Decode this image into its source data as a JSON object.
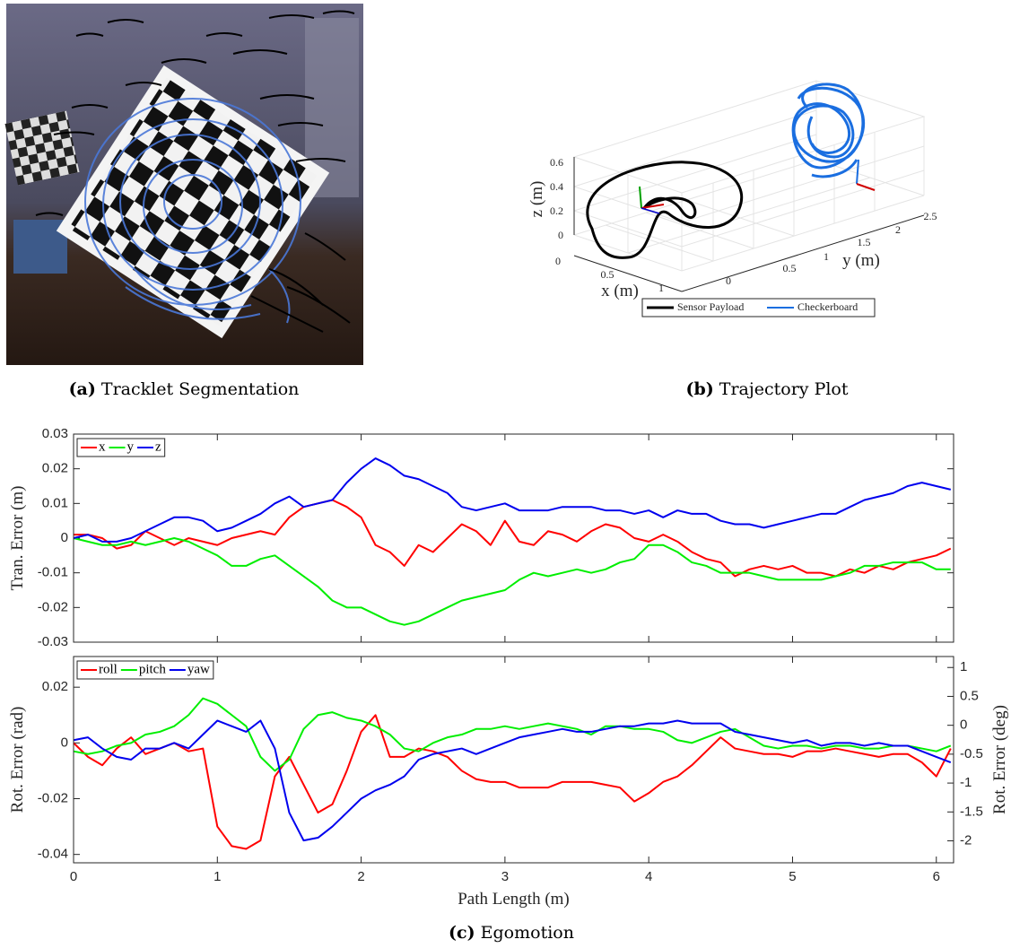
{
  "figure_a": {
    "label": "(a)",
    "caption": "Tracklet Segmentation"
  },
  "figure_b": {
    "label": "(b)",
    "caption": "Trajectory Plot",
    "zlabel": "z (m)",
    "xlabel": "x (m)",
    "ylabel": "y (m)",
    "zticks": [
      "0",
      "0.2",
      "0.4",
      "0.6"
    ],
    "xticks": [
      "0",
      "0.5",
      "1"
    ],
    "yticks": [
      "0",
      "0.5",
      "1",
      "1.5",
      "2",
      "2.5"
    ],
    "legend": [
      "Sensor Payload",
      "Checkerboard"
    ]
  },
  "figure_c": {
    "label": "(c)",
    "caption": "Egomotion"
  },
  "chart_data": [
    {
      "type": "line",
      "ylabel": "Tran. Error (m)",
      "xlim": [
        0,
        6.12
      ],
      "ylim": [
        -0.03,
        0.03
      ],
      "xticks": [
        0,
        1,
        2,
        3,
        4,
        5,
        6
      ],
      "show_xtick_labels": false,
      "yticks": [
        -0.03,
        -0.02,
        -0.01,
        0,
        0.01,
        0.02,
        0.03
      ],
      "legend": "upper left",
      "x": [
        0,
        0.1,
        0.2,
        0.3,
        0.4,
        0.5,
        0.6,
        0.7,
        0.8,
        0.9,
        1,
        1.1,
        1.2,
        1.3,
        1.4,
        1.5,
        1.6,
        1.7,
        1.8,
        1.9,
        2,
        2.1,
        2.2,
        2.3,
        2.4,
        2.5,
        2.6,
        2.7,
        2.8,
        2.9,
        3,
        3.1,
        3.2,
        3.3,
        3.4,
        3.5,
        3.6,
        3.7,
        3.8,
        3.9,
        4,
        4.1,
        4.2,
        4.3,
        4.4,
        4.5,
        4.6,
        4.7,
        4.8,
        4.9,
        5,
        5.1,
        5.2,
        5.3,
        5.4,
        5.5,
        5.6,
        5.7,
        5.8,
        5.9,
        6,
        6.1
      ],
      "series": [
        {
          "name": "x",
          "color": "#ff0000",
          "values": [
            0.001,
            0.001,
            0,
            -0.003,
            -0.002,
            0.002,
            0,
            -0.002,
            0,
            -0.001,
            -0.002,
            0,
            0.001,
            0.002,
            0.001,
            0.006,
            0.009,
            0.01,
            0.011,
            0.009,
            0.006,
            -0.002,
            -0.004,
            -0.008,
            -0.002,
            -0.004,
            0,
            0.004,
            0.002,
            -0.002,
            0.005,
            -0.001,
            -0.002,
            0.002,
            0.001,
            -0.001,
            0.002,
            0.004,
            0.003,
            0,
            -0.001,
            0.001,
            -0.001,
            -0.004,
            -0.006,
            -0.007,
            -0.011,
            -0.009,
            -0.008,
            -0.009,
            -0.008,
            -0.01,
            -0.01,
            -0.011,
            -0.009,
            -0.01,
            -0.008,
            -0.009,
            -0.007,
            -0.006,
            -0.005,
            -0.003
          ]
        },
        {
          "name": "y",
          "color": "#00ee00",
          "values": [
            0,
            -0.001,
            -0.002,
            -0.002,
            -0.001,
            -0.002,
            -0.001,
            0,
            -0.001,
            -0.003,
            -0.005,
            -0.008,
            -0.008,
            -0.006,
            -0.005,
            -0.008,
            -0.011,
            -0.014,
            -0.018,
            -0.02,
            -0.02,
            -0.022,
            -0.024,
            -0.025,
            -0.024,
            -0.022,
            -0.02,
            -0.018,
            -0.017,
            -0.016,
            -0.015,
            -0.012,
            -0.01,
            -0.011,
            -0.01,
            -0.009,
            -0.01,
            -0.009,
            -0.007,
            -0.006,
            -0.002,
            -0.002,
            -0.004,
            -0.007,
            -0.008,
            -0.01,
            -0.01,
            -0.01,
            -0.011,
            -0.012,
            -0.012,
            -0.012,
            -0.012,
            -0.011,
            -0.01,
            -0.008,
            -0.008,
            -0.007,
            -0.007,
            -0.007,
            -0.009,
            -0.009
          ]
        },
        {
          "name": "z",
          "color": "#0000ee",
          "values": [
            0,
            0.001,
            -0.001,
            -0.001,
            0,
            0.002,
            0.004,
            0.006,
            0.006,
            0.005,
            0.002,
            0.003,
            0.005,
            0.007,
            0.01,
            0.012,
            0.009,
            0.01,
            0.011,
            0.016,
            0.02,
            0.023,
            0.021,
            0.018,
            0.017,
            0.015,
            0.013,
            0.009,
            0.008,
            0.009,
            0.01,
            0.008,
            0.008,
            0.008,
            0.009,
            0.009,
            0.009,
            0.008,
            0.008,
            0.007,
            0.008,
            0.006,
            0.008,
            0.007,
            0.007,
            0.005,
            0.004,
            0.004,
            0.003,
            0.004,
            0.005,
            0.006,
            0.007,
            0.007,
            0.009,
            0.011,
            0.012,
            0.013,
            0.015,
            0.016,
            0.015,
            0.014
          ]
        }
      ]
    },
    {
      "type": "line",
      "ylabel": "Rot. Error (rad)",
      "y2label": "Rot. Error (deg)",
      "xlabel": "Path Length (m)",
      "xlim": [
        0,
        6.12
      ],
      "ylim": [
        -0.043,
        0.031
      ],
      "y2lim": [
        -2.38,
        1.19
      ],
      "xticks": [
        0,
        1,
        2,
        3,
        4,
        5,
        6
      ],
      "yticks": [
        -0.04,
        -0.02,
        0,
        0.02
      ],
      "y2ticks": [
        -2,
        -1.5,
        -1,
        -0.5,
        0,
        0.5,
        1
      ],
      "legend": "upper left",
      "x": [
        0,
        0.1,
        0.2,
        0.3,
        0.4,
        0.5,
        0.6,
        0.7,
        0.8,
        0.9,
        1,
        1.1,
        1.2,
        1.3,
        1.4,
        1.5,
        1.6,
        1.7,
        1.8,
        1.9,
        2,
        2.1,
        2.2,
        2.3,
        2.4,
        2.5,
        2.6,
        2.7,
        2.8,
        2.9,
        3,
        3.1,
        3.2,
        3.3,
        3.4,
        3.5,
        3.6,
        3.7,
        3.8,
        3.9,
        4,
        4.1,
        4.2,
        4.3,
        4.4,
        4.5,
        4.6,
        4.7,
        4.8,
        4.9,
        5,
        5.1,
        5.2,
        5.3,
        5.4,
        5.5,
        5.6,
        5.7,
        5.8,
        5.9,
        6,
        6.1
      ],
      "series": [
        {
          "name": "roll",
          "color": "#ff0000",
          "values": [
            0,
            -0.005,
            -0.008,
            -0.002,
            0.002,
            -0.004,
            -0.002,
            0,
            -0.003,
            -0.002,
            -0.03,
            -0.037,
            -0.038,
            -0.035,
            -0.012,
            -0.005,
            -0.015,
            -0.025,
            -0.022,
            -0.01,
            0.004,
            0.01,
            -0.005,
            -0.005,
            -0.002,
            -0.003,
            -0.005,
            -0.01,
            -0.013,
            -0.014,
            -0.014,
            -0.016,
            -0.016,
            -0.016,
            -0.014,
            -0.014,
            -0.014,
            -0.015,
            -0.016,
            -0.021,
            -0.018,
            -0.014,
            -0.012,
            -0.008,
            -0.003,
            0.002,
            -0.002,
            -0.003,
            -0.004,
            -0.004,
            -0.005,
            -0.003,
            -0.003,
            -0.002,
            -0.003,
            -0.004,
            -0.005,
            -0.004,
            -0.004,
            -0.007,
            -0.012,
            -0.002
          ]
        },
        {
          "name": "pitch",
          "color": "#00ee00",
          "values": [
            -0.003,
            -0.004,
            -0.003,
            -0.001,
            0,
            0.003,
            0.004,
            0.006,
            0.01,
            0.016,
            0.014,
            0.01,
            0.006,
            -0.005,
            -0.01,
            -0.006,
            0.005,
            0.01,
            0.011,
            0.009,
            0.008,
            0.006,
            0.003,
            -0.002,
            -0.003,
            0,
            0.002,
            0.003,
            0.005,
            0.005,
            0.006,
            0.005,
            0.006,
            0.007,
            0.006,
            0.005,
            0.003,
            0.006,
            0.006,
            0.005,
            0.005,
            0.004,
            0.001,
            0,
            0.002,
            0.004,
            0.005,
            0.002,
            -0.001,
            -0.002,
            -0.001,
            -0.001,
            -0.002,
            -0.001,
            -0.001,
            -0.002,
            -0.002,
            -0.001,
            -0.001,
            -0.002,
            -0.003,
            -0.001
          ]
        },
        {
          "name": "yaw",
          "color": "#0000ee",
          "values": [
            0.001,
            0.002,
            -0.002,
            -0.005,
            -0.006,
            -0.002,
            -0.002,
            0,
            -0.002,
            0.003,
            0.008,
            0.006,
            0.004,
            0.008,
            -0.002,
            -0.025,
            -0.035,
            -0.034,
            -0.03,
            -0.025,
            -0.02,
            -0.017,
            -0.015,
            -0.012,
            -0.006,
            -0.004,
            -0.003,
            -0.002,
            -0.004,
            -0.002,
            0,
            0.002,
            0.003,
            0.004,
            0.005,
            0.004,
            0.004,
            0.005,
            0.006,
            0.006,
            0.007,
            0.007,
            0.008,
            0.007,
            0.007,
            0.007,
            0.004,
            0.003,
            0.002,
            0.001,
            0,
            0.001,
            -0.001,
            0,
            0,
            -0.001,
            0,
            -0.001,
            -0.001,
            -0.003,
            -0.005,
            -0.007
          ]
        }
      ]
    }
  ]
}
